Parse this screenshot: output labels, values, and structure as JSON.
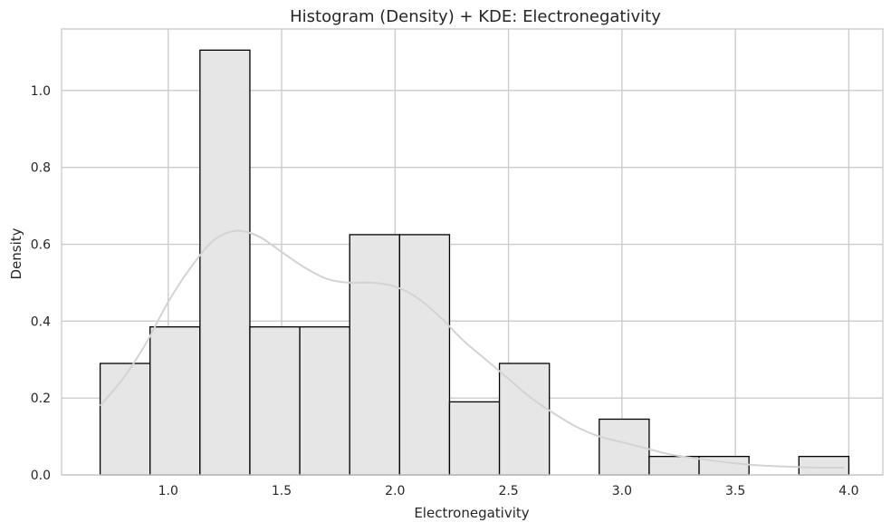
{
  "chart_data": {
    "type": "bar",
    "title": "Histogram (Density) + KDE: Electronegativity",
    "xlabel": "Electronegativity",
    "ylabel": "Density",
    "xlim": [
      0.53,
      4.15
    ],
    "ylim": [
      0.0,
      1.16
    ],
    "xticks": [
      "1.0",
      "1.5",
      "2.0",
      "2.5",
      "3.0",
      "3.5",
      "4.0"
    ],
    "xtick_values": [
      1.0,
      1.5,
      2.0,
      2.5,
      3.0,
      3.5,
      4.0
    ],
    "yticks": [
      "0.0",
      "0.2",
      "0.4",
      "0.6",
      "0.8",
      "1.0"
    ],
    "ytick_values": [
      0.0,
      0.2,
      0.4,
      0.6,
      0.8,
      1.0
    ],
    "grid": true,
    "bins": [
      {
        "x0": 0.7,
        "x1": 0.92,
        "density": 0.29
      },
      {
        "x0": 0.92,
        "x1": 1.14,
        "density": 0.385
      },
      {
        "x0": 1.14,
        "x1": 1.36,
        "density": 1.105
      },
      {
        "x0": 1.36,
        "x1": 1.58,
        "density": 0.385
      },
      {
        "x0": 1.58,
        "x1": 1.8,
        "density": 0.385
      },
      {
        "x0": 1.8,
        "x1": 2.02,
        "density": 0.625
      },
      {
        "x0": 2.02,
        "x1": 2.24,
        "density": 0.625
      },
      {
        "x0": 2.24,
        "x1": 2.46,
        "density": 0.19
      },
      {
        "x0": 2.46,
        "x1": 2.68,
        "density": 0.29
      },
      {
        "x0": 2.68,
        "x1": 2.9,
        "density": 0.0
      },
      {
        "x0": 2.9,
        "x1": 3.12,
        "density": 0.145
      },
      {
        "x0": 3.12,
        "x1": 3.34,
        "density": 0.048
      },
      {
        "x0": 3.34,
        "x1": 3.56,
        "density": 0.048
      },
      {
        "x0": 3.56,
        "x1": 3.78,
        "density": 0.0
      },
      {
        "x0": 3.78,
        "x1": 4.0,
        "density": 0.048
      }
    ],
    "kde": {
      "x": [
        0.7,
        0.8,
        0.9,
        1.0,
        1.1,
        1.2,
        1.3,
        1.4,
        1.5,
        1.6,
        1.7,
        1.8,
        1.9,
        2.0,
        2.1,
        2.2,
        2.3,
        2.4,
        2.5,
        2.6,
        2.7,
        2.8,
        2.9,
        3.0,
        3.1,
        3.2,
        3.3,
        3.4,
        3.5,
        3.6,
        3.7,
        3.8,
        3.9,
        3.98
      ],
      "y": [
        0.18,
        0.25,
        0.34,
        0.45,
        0.54,
        0.61,
        0.635,
        0.62,
        0.58,
        0.54,
        0.51,
        0.5,
        0.5,
        0.49,
        0.46,
        0.41,
        0.35,
        0.3,
        0.25,
        0.2,
        0.16,
        0.125,
        0.1,
        0.085,
        0.07,
        0.055,
        0.045,
        0.037,
        0.03,
        0.025,
        0.022,
        0.02,
        0.019,
        0.019
      ]
    },
    "colors": {
      "bar_fill": "#e6e6e6",
      "bar_edge": "#000000",
      "kde_line": "#d3d3d3",
      "grid": "#cccccc",
      "axes_edge": "#cccccc"
    }
  }
}
